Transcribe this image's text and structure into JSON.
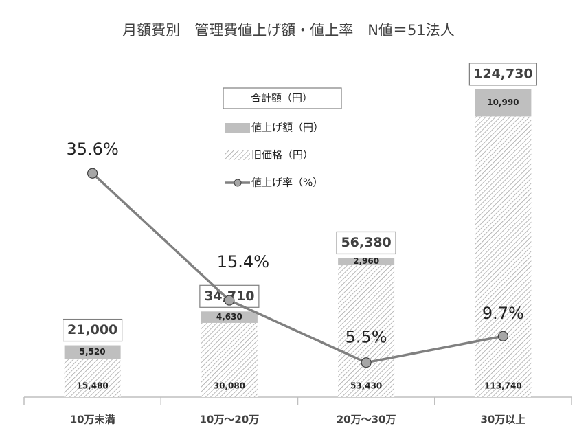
{
  "chart_data": {
    "type": "bar",
    "title": "月額費別　管理費値上げ額・値上率　N値＝51法人",
    "categories": [
      "10万未満",
      "10万～20万",
      "20万～30万",
      "30万以上"
    ],
    "series": [
      {
        "name": "旧価格（円）",
        "color": "#a6a6a6",
        "pattern": "hatch",
        "values": [
          15480,
          30080,
          53430,
          113740
        ],
        "value_labels": [
          "15,480",
          "30,080",
          "53,430",
          "113,740"
        ]
      },
      {
        "name": "値上げ額（円）",
        "color": "#bfbfbf",
        "values": [
          5520,
          4630,
          2960,
          10990
        ],
        "value_labels": [
          "5,520",
          "4,630",
          "2,960",
          "10,990"
        ]
      },
      {
        "name": "値上げ率（%）",
        "type": "line",
        "axis": "y2",
        "color": "#808080",
        "values": [
          35.6,
          15.4,
          5.5,
          9.7
        ],
        "value_labels": [
          "35.6%",
          "15.4%",
          "5.5%",
          "9.7%"
        ]
      }
    ],
    "totals": {
      "name": "合計額（円）",
      "values": [
        21000,
        34710,
        56380,
        124730
      ],
      "value_labels": [
        "21,000",
        "34,710",
        "56,380",
        "124,730"
      ]
    },
    "ylim": [
      0,
      135000
    ],
    "y2lim": [
      0,
      53
    ]
  }
}
